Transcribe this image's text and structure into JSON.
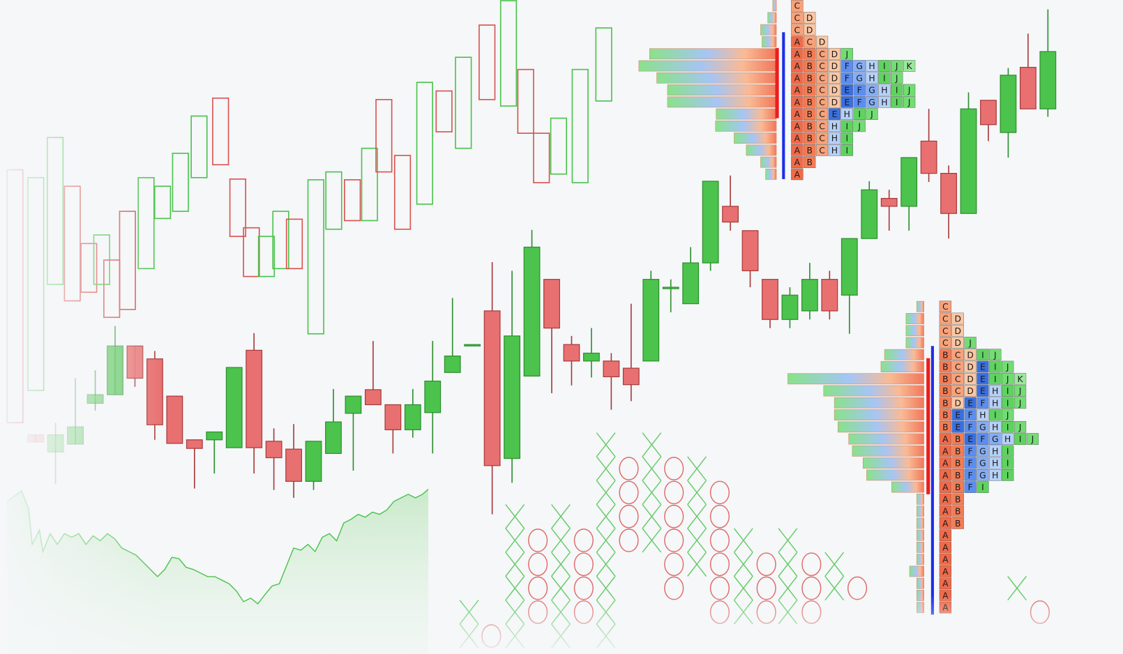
{
  "chart_data": [
    {
      "type": "hollow_candlestick",
      "x": [
        21,
        50,
        77,
        101,
        124,
        142,
        156,
        178,
        204,
        227,
        252,
        278,
        308,
        332,
        351,
        372,
        392,
        411,
        441,
        466,
        492,
        516,
        536,
        562,
        593,
        620,
        647,
        680,
        710,
        734,
        756,
        780,
        810,
        843
      ],
      "open": [
        701,
        393,
        541,
        678,
        598,
        541,
        575,
        643,
        563,
        633,
        643,
        690,
        801,
        688,
        620,
        552,
        563,
        632,
        472,
        618,
        687,
        630,
        799,
        721,
        653,
        811,
        731,
        903,
        790,
        841,
        752,
        695,
        683,
        797
      ],
      "close": [
        348,
        690,
        746,
        518,
        530,
        610,
        495,
        506,
        690,
        678,
        724,
        776,
        708,
        608,
        552,
        608,
        643,
        563,
        687,
        698,
        630,
        731,
        698,
        618,
        823,
        754,
        858,
        799,
        937,
        752,
        683,
        773,
        841,
        899
      ],
      "xlim": [
        0,
        1568
      ],
      "ylim": [
        25,
        938
      ],
      "up_color": "#4cc34c",
      "down_color": "#d9534f"
    },
    {
      "type": "candlestick",
      "categories": [
        null,
        null,
        null,
        null,
        null,
        null,
        null,
        null,
        null,
        null,
        null,
        null,
        null,
        null,
        null,
        null,
        null,
        null,
        null,
        null,
        null,
        null,
        null,
        null,
        null,
        null,
        null,
        null,
        null,
        null,
        null,
        null,
        null,
        null,
        null,
        null,
        null,
        null,
        null,
        null,
        null,
        null,
        null,
        null,
        null,
        null,
        null,
        null,
        null,
        null,
        null,
        null
      ],
      "open": [
        331,
        307,
        318,
        375,
        387,
        455,
        437,
        385,
        324,
        324,
        313,
        449,
        322,
        311,
        266,
        305,
        361,
        394,
        373,
        338,
        362,
        418,
        455,
        504,
        298,
        413,
        548,
        457,
        434,
        434,
        424,
        434,
        535,
        514,
        571,
        650,
        616,
        548,
        492,
        504,
        548,
        526,
        605,
        661,
        650,
        741,
        696,
        640,
        798,
        753,
        844,
        786
      ],
      "high": [
        331,
        348,
        410,
        421,
        483,
        455,
        448,
        385,
        324,
        335,
        425,
        473,
        340,
        346,
        322,
        395,
        385,
        462,
        373,
        395,
        462,
        522,
        457,
        572,
        560,
        617,
        548,
        469,
        480,
        445,
        514,
        560,
        548,
        593,
        685,
        693,
        616,
        548,
        537,
        571,
        560,
        605,
        685,
        673,
        718,
        786,
        707,
        809,
        798,
        843,
        891,
        925
      ],
      "low": [
        320,
        262,
        318,
        365,
        387,
        398,
        324,
        319,
        256,
        277,
        313,
        277,
        254,
        243,
        254,
        305,
        281,
        373,
        305,
        327,
        305,
        418,
        455,
        220,
        264,
        413,
        389,
        400,
        411,
        366,
        378,
        434,
        502,
        514,
        560,
        616,
        537,
        480,
        480,
        492,
        492,
        472,
        605,
        616,
        616,
        684,
        605,
        640,
        741,
        718,
        786,
        775
      ],
      "close": [
        321,
        331,
        342,
        387,
        455,
        410,
        345,
        319,
        312,
        335,
        425,
        313,
        299,
        266,
        322,
        349,
        385,
        373,
        338,
        373,
        406,
        441,
        457,
        288,
        469,
        593,
        480,
        434,
        445,
        412,
        401,
        548,
        537,
        571,
        685,
        628,
        560,
        492,
        526,
        548,
        504,
        605,
        673,
        650,
        718,
        696,
        640,
        786,
        764,
        833,
        786,
        866
      ],
      "ylim": [
        25,
        938
      ],
      "up_color": "#4cc34c",
      "down_color": "#e87070"
    },
    {
      "type": "area",
      "x": [
        10,
        30,
        40,
        45,
        55,
        60,
        70,
        80,
        90,
        100,
        110,
        120,
        130,
        140,
        150,
        160,
        170,
        180,
        190,
        200,
        210,
        220,
        230,
        240,
        250,
        260,
        270,
        280,
        290,
        300,
        310,
        320,
        330,
        340,
        350,
        360,
        370,
        380,
        390,
        400,
        410,
        420,
        430,
        440,
        450,
        460,
        470,
        480,
        490,
        500,
        510,
        520,
        530,
        540,
        550,
        560,
        570,
        580,
        590,
        598
      ],
      "values": [
        238,
        253,
        228,
        178,
        198,
        168,
        193,
        178,
        193,
        188,
        193,
        178,
        190,
        183,
        193,
        186,
        173,
        168,
        163,
        153,
        143,
        133,
        143,
        160,
        158,
        146,
        143,
        138,
        133,
        133,
        128,
        123,
        113,
        98,
        103,
        95,
        108,
        120,
        123,
        148,
        173,
        170,
        178,
        168,
        188,
        193,
        183,
        208,
        213,
        220,
        216,
        223,
        220,
        226,
        238,
        243,
        248,
        243,
        248,
        255
      ],
      "xlim": [
        0,
        1568
      ],
      "ylim": [
        25,
        938
      ],
      "color": "#4cc34c"
    },
    {
      "type": "point_and_figure",
      "x": [
        655,
        686,
        719,
        751,
        783,
        815,
        846,
        878,
        910,
        941,
        973,
        1005,
        1038,
        1070,
        1100,
        1133,
        1165,
        1197,
        1420,
        1452
      ],
      "low": [
        0,
        0,
        0,
        1,
        0,
        1,
        0,
        4,
        4,
        2,
        3,
        1,
        1,
        1,
        1,
        1,
        2,
        2,
        2,
        1
      ],
      "high": [
        1,
        0,
        5,
        4,
        5,
        4,
        8,
        7,
        8,
        7,
        7,
        6,
        4,
        3,
        4,
        3,
        3,
        2,
        2,
        1
      ],
      "xlim": [
        0,
        1568
      ],
      "ylim": [
        -0.75,
        26.59
      ],
      "up_color": "#4cc34c",
      "down_color": "#d9534f"
    },
    {
      "type": "market_profile",
      "rows": [
        [
          "C"
        ],
        [
          "C",
          "D"
        ],
        [
          "C",
          "D"
        ],
        [
          "A",
          "C",
          "D"
        ],
        [
          "A",
          "B",
          "C",
          "D",
          "J"
        ],
        [
          "A",
          "B",
          "C",
          "D",
          "F",
          "G",
          "H",
          "I",
          "J",
          "K"
        ],
        [
          "A",
          "B",
          "C",
          "D",
          "F",
          "G",
          "H",
          "I",
          "J"
        ],
        [
          "A",
          "B",
          "C",
          "D",
          "E",
          "F",
          "G",
          "H",
          "I",
          "J"
        ],
        [
          "A",
          "B",
          "C",
          "D",
          "E",
          "F",
          "G",
          "H",
          "I",
          "J"
        ],
        [
          "A",
          "B",
          "C",
          "E",
          "H",
          "I",
          "J"
        ],
        [
          "A",
          "B",
          "C",
          "H",
          "I",
          "J"
        ],
        [
          "A",
          "B",
          "C",
          "H",
          "I"
        ],
        [
          "A",
          "B",
          "C",
          "H",
          "I"
        ],
        [
          "A",
          "B"
        ],
        [
          "A"
        ]
      ],
      "volumes": [
        5,
        12,
        22,
        20,
        177,
        192,
        167,
        152,
        152,
        84,
        85,
        59,
        42,
        22,
        15
      ]
    },
    {
      "type": "market_profile",
      "rows": [
        [
          "C"
        ],
        [
          "C",
          "D"
        ],
        [
          "C",
          "D"
        ],
        [
          "C",
          "D",
          "J"
        ],
        [
          "B",
          "C",
          "D",
          "I",
          "J"
        ],
        [
          "B",
          "C",
          "D",
          "E",
          "I",
          "J"
        ],
        [
          "B",
          "C",
          "D",
          "E",
          "I",
          "J",
          "K"
        ],
        [
          "B",
          "C",
          "D",
          "E",
          "H",
          "I",
          "J"
        ],
        [
          "B",
          "D",
          "E",
          "F",
          "H",
          "I",
          "J"
        ],
        [
          "B",
          "E",
          "F",
          "H",
          "I",
          "J"
        ],
        [
          "B",
          "E",
          "F",
          "G",
          "H",
          "I",
          "J"
        ],
        [
          "A",
          "B",
          "E",
          "F",
          "G",
          "H",
          "I",
          "J"
        ],
        [
          "A",
          "B",
          "F",
          "G",
          "H",
          "I"
        ],
        [
          "A",
          "B",
          "F",
          "G",
          "H",
          "I"
        ],
        [
          "A",
          "B",
          "F",
          "G",
          "H",
          "I"
        ],
        [
          "A",
          "B",
          "F",
          "I"
        ],
        [
          "A",
          "B"
        ],
        [
          "A",
          "B"
        ],
        [
          "A",
          "B"
        ],
        [
          "A"
        ],
        [
          "A"
        ],
        [
          "A"
        ],
        [
          "A"
        ],
        [
          "A"
        ],
        [
          "A"
        ],
        [
          "A"
        ]
      ],
      "volumes": [
        10,
        25,
        25,
        25,
        55,
        60,
        190,
        140,
        125,
        125,
        120,
        105,
        100,
        85,
        80,
        45,
        10,
        10,
        10,
        10,
        10,
        10,
        20,
        10,
        10,
        10
      ]
    }
  ]
}
